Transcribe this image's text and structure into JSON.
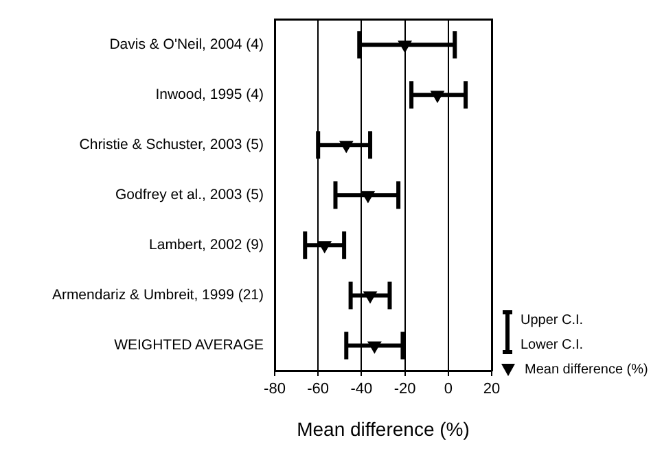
{
  "chart_data": {
    "type": "scatter",
    "xlabel": "Mean difference (%)",
    "categories": [
      "Davis & O'Neil, 2004 (4)",
      "Inwood, 1995 (4)",
      "Christie & Schuster, 2003 (5)",
      "Godfrey et al., 2003 (5)",
      "Lambert, 2002 (9)",
      "Armendariz & Umbreit, 1999 (21)",
      "WEIGHTED AVERAGE"
    ],
    "series": [
      {
        "name": "Mean difference (%)",
        "color": "#000000",
        "values": [
          -20,
          -5,
          -47,
          -37,
          -57,
          -36,
          -34
        ],
        "errors": [
          [
            -41,
            3
          ],
          [
            -17,
            8
          ],
          [
            -60,
            -36
          ],
          [
            -52,
            -23
          ],
          [
            -66,
            -48
          ],
          [
            -45,
            -27
          ],
          [
            -47,
            -21
          ]
        ]
      }
    ],
    "orientation": "horizontal",
    "xlim": [
      -80,
      20
    ],
    "xticks": [
      -80,
      -60,
      -40,
      -20,
      0,
      20
    ],
    "grid": "x",
    "marker": "triangle",
    "legend": "right",
    "annotations": [
      "Upper C.I.",
      "Lower C.I."
    ]
  }
}
